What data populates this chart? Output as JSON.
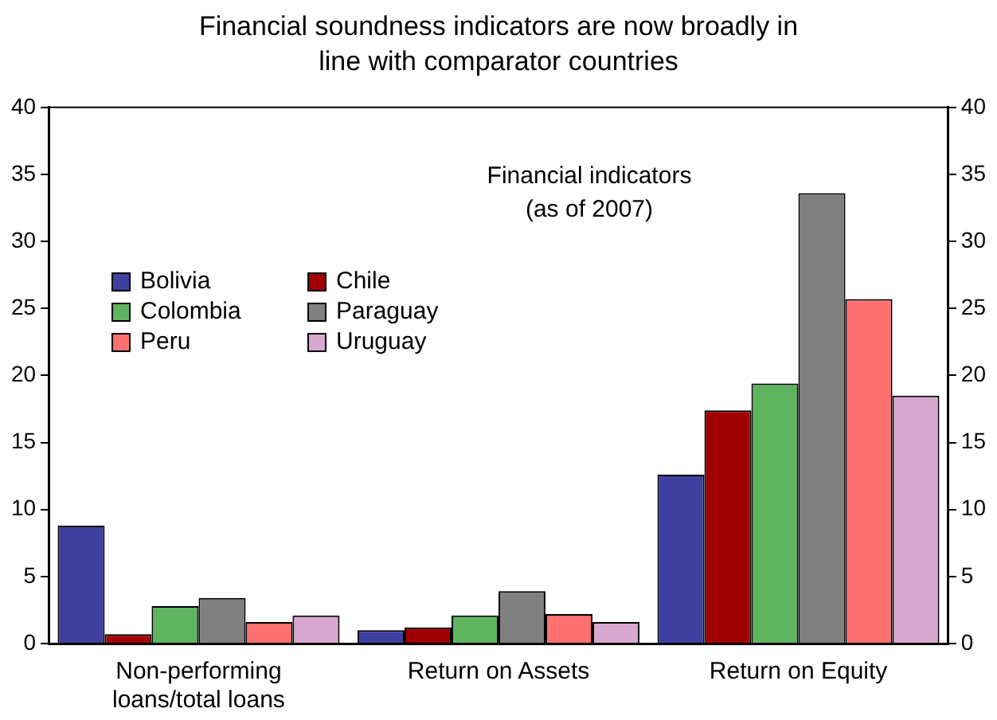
{
  "chart_data": {
    "type": "bar",
    "title": "Financial soundness indicators are now broadly in line with comparator countries",
    "subtitle": "Financial indicators (as of 2007)",
    "categories": [
      "Non-performing loans/total loans",
      "Return on Assets",
      "Return on Equity"
    ],
    "series": [
      {
        "name": "Bolivia",
        "color": "#3f3fa0",
        "values": [
          8.8,
          1.0,
          12.6
        ]
      },
      {
        "name": "Chile",
        "color": "#a00000",
        "values": [
          0.7,
          1.2,
          17.4
        ]
      },
      {
        "name": "Colombia",
        "color": "#5fb55f",
        "values": [
          2.8,
          2.1,
          19.4
        ]
      },
      {
        "name": "Paraguay",
        "color": "#808080",
        "values": [
          3.4,
          3.9,
          33.6
        ]
      },
      {
        "name": "Peru",
        "color": "#ff7070",
        "values": [
          1.6,
          2.2,
          25.7
        ]
      },
      {
        "name": "Uruguay",
        "color": "#d8a8d0",
        "values": [
          2.1,
          1.6,
          18.5
        ]
      }
    ],
    "ylim": [
      0,
      40
    ],
    "yticks": [
      0,
      5,
      10,
      15,
      20,
      25,
      30,
      35,
      40
    ],
    "y2lim": [
      0,
      40
    ],
    "y2ticks": [
      0,
      5,
      10,
      15,
      20,
      25,
      30,
      35,
      40
    ],
    "grid": false,
    "legend": "top left"
  }
}
